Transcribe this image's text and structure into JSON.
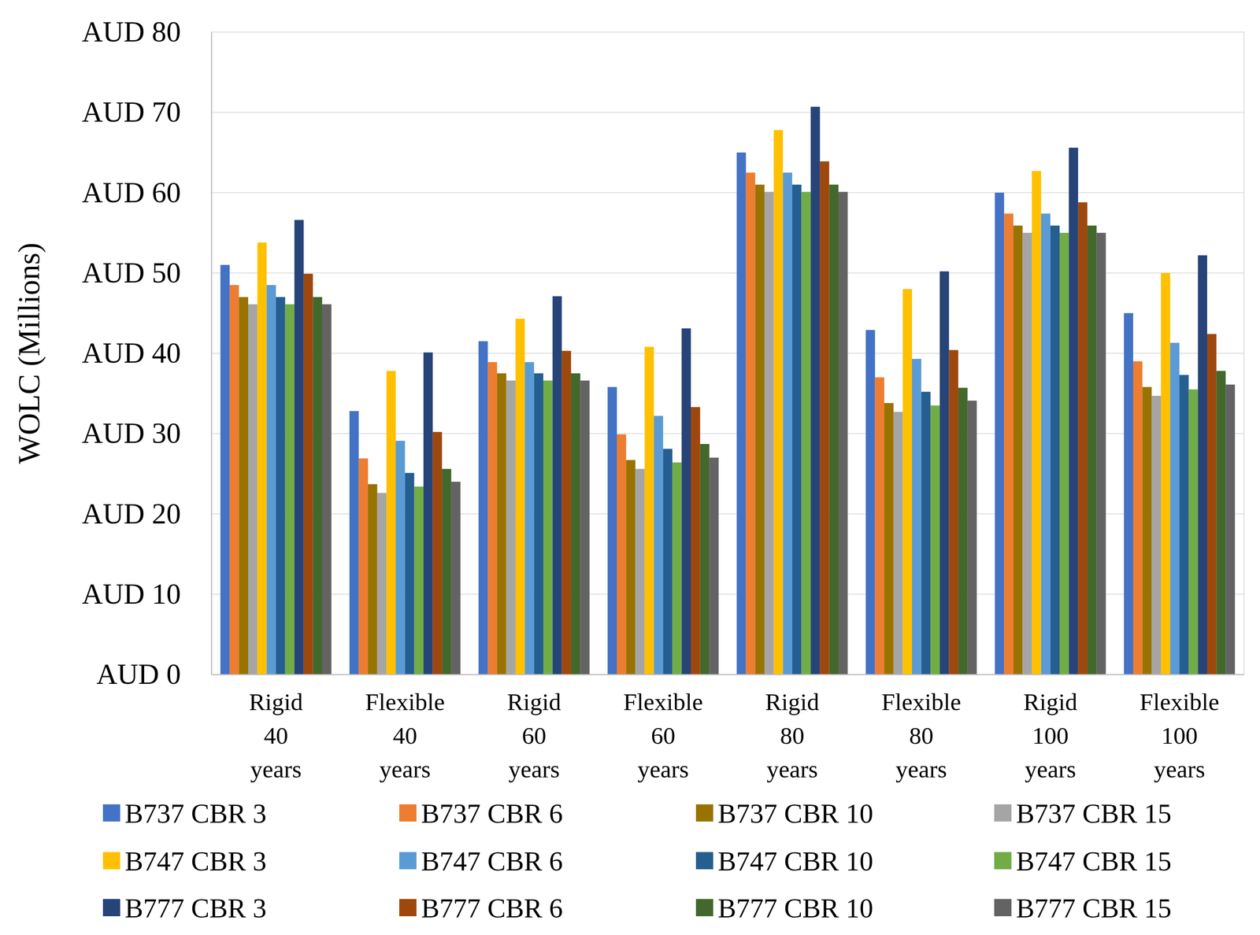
{
  "chart_data": {
    "type": "bar",
    "y_label": "WOLC (Millions)",
    "categories": [
      "Rigid 40 years",
      "Flexible 40 years",
      "Rigid 60 years",
      "Flexible 60 years",
      "Rigid 80 years",
      "Flexible 80 years",
      "Rigid 100 years",
      "Flexible 100 years"
    ],
    "series": [
      {
        "name": "B737 CBR 3",
        "color": "#4472c4",
        "values": [
          51.0,
          32.8,
          41.5,
          35.8,
          65.0,
          42.9,
          60.0,
          45.0
        ]
      },
      {
        "name": "B737 CBR 6",
        "color": "#ed7d31",
        "values": [
          48.5,
          26.9,
          38.9,
          29.9,
          62.5,
          37.0,
          57.4,
          39.0
        ]
      },
      {
        "name": "B737 CBR 10",
        "color": "#997300",
        "values": [
          47.0,
          23.7,
          37.5,
          26.7,
          61.0,
          33.8,
          55.9,
          35.8
        ]
      },
      {
        "name": "B737 CBR 15",
        "color": "#a5a5a5",
        "values": [
          46.1,
          22.6,
          36.6,
          25.6,
          60.1,
          32.7,
          55.0,
          34.7
        ]
      },
      {
        "name": "B747 CBR 3",
        "color": "#ffc000",
        "values": [
          53.8,
          37.8,
          44.3,
          40.8,
          67.8,
          48.0,
          62.7,
          50.0
        ]
      },
      {
        "name": "B747 CBR 6",
        "color": "#5b9bd5",
        "values": [
          48.5,
          29.1,
          38.9,
          32.2,
          62.5,
          39.3,
          57.4,
          41.3
        ]
      },
      {
        "name": "B747 CBR 10",
        "color": "#255e91",
        "values": [
          47.0,
          25.1,
          37.5,
          28.1,
          61.0,
          35.2,
          55.9,
          37.3
        ]
      },
      {
        "name": "B747 CBR 15",
        "color": "#70ad47",
        "values": [
          46.1,
          23.4,
          36.6,
          26.4,
          60.1,
          33.5,
          55.0,
          35.5
        ]
      },
      {
        "name": "B777 CBR 3",
        "color": "#264478",
        "values": [
          56.6,
          40.1,
          47.1,
          43.1,
          70.7,
          50.2,
          65.6,
          52.2
        ]
      },
      {
        "name": "B777 CBR 6",
        "color": "#9e480e",
        "values": [
          49.9,
          30.2,
          40.3,
          33.3,
          63.9,
          40.4,
          58.8,
          42.4
        ]
      },
      {
        "name": "B777 CBR 10",
        "color": "#43682b",
        "values": [
          47.0,
          25.6,
          37.5,
          28.7,
          61.0,
          35.7,
          55.9,
          37.8
        ]
      },
      {
        "name": "B777 CBR 15",
        "color": "#636363",
        "values": [
          46.1,
          24.0,
          36.6,
          27.0,
          60.1,
          34.1,
          55.0,
          36.1
        ]
      }
    ],
    "ylim": [
      0,
      80
    ],
    "yticks": [
      {
        "value": 0,
        "label": "AUD 0"
      },
      {
        "value": 10,
        "label": "AUD 10"
      },
      {
        "value": 20,
        "label": "AUD 20"
      },
      {
        "value": 30,
        "label": "AUD 30"
      },
      {
        "value": 40,
        "label": "AUD 40"
      },
      {
        "value": 50,
        "label": "AUD 50"
      },
      {
        "value": 60,
        "label": "AUD 60"
      },
      {
        "value": 70,
        "label": "AUD 70"
      },
      {
        "value": 80,
        "label": "AUD 80"
      }
    ],
    "grid": true,
    "legend": "bottom"
  }
}
